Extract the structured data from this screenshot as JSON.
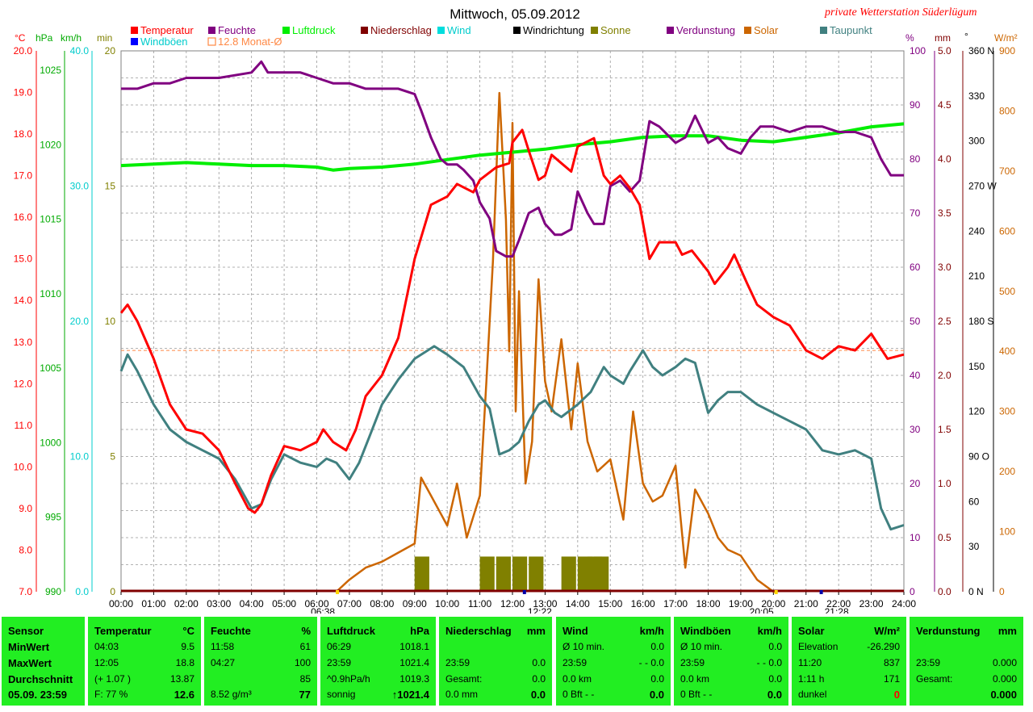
{
  "header": {
    "title": "Mittwoch, 05.09.2012",
    "station": "private Wetterstation Süderlügum"
  },
  "legend": [
    {
      "label": "Temperatur",
      "color": "#ff0000"
    },
    {
      "label": "Feuchte",
      "color": "#800080"
    },
    {
      "label": "Luftdruck",
      "color": "#00ee00"
    },
    {
      "label": "Niederschlag",
      "color": "#800000"
    },
    {
      "label": "Wind",
      "color": "#00dddd"
    },
    {
      "label": "Windrichtung",
      "color": "#000000"
    },
    {
      "label": "Sonne",
      "color": "#808000"
    },
    {
      "label": "Verdunstung",
      "color": "#800080"
    },
    {
      "label": "Solar",
      "color": "#cc6600"
    },
    {
      "label": "Taupunkt",
      "color": "#408080"
    },
    {
      "label": "Windböen",
      "color": "#0000ff"
    },
    {
      "label": "12.8 Monat-Ø",
      "color": "#ff8844"
    }
  ],
  "axes_left": {
    "temp": {
      "unit": "°C",
      "color": "#ff0000",
      "ticks": [
        "20.0",
        "19.0",
        "18.0",
        "17.0",
        "16.0",
        "15.0",
        "14.0",
        "13.0",
        "12.0",
        "11.0",
        "10.0",
        "9.0",
        "8.0",
        "7.0"
      ]
    },
    "press": {
      "unit": "hPa",
      "color": "#00aa00",
      "ticks": [
        "1025",
        "1020",
        "1015",
        "1010",
        "1005",
        "1000",
        "995",
        "990"
      ]
    },
    "wind": {
      "unit": "km/h",
      "color": "#00cccc",
      "ticks": [
        "40.0",
        "30.0",
        "20.0",
        "10.0",
        "0.0"
      ]
    },
    "sun": {
      "unit": "min",
      "color": "#808000",
      "ticks": [
        "20",
        "15",
        "10",
        "5",
        "0"
      ]
    }
  },
  "axes_right": {
    "hum": {
      "unit": "%",
      "color": "#800080",
      "ticks": [
        "100",
        "90",
        "80",
        "70",
        "60",
        "50",
        "40",
        "30",
        "20",
        "10",
        "0"
      ]
    },
    "rain": {
      "unit": "mm",
      "color": "#800000",
      "ticks": [
        "5.0",
        "4.5",
        "4.0",
        "3.5",
        "3.0",
        "2.5",
        "2.0",
        "1.5",
        "1.0",
        "0.5",
        "0.0"
      ]
    },
    "dir": {
      "unit": "°",
      "color": "#000000",
      "ticks": [
        "360 N",
        "330",
        "300",
        "270 W",
        "240",
        "210",
        "180 S",
        "150",
        "120",
        "90  O",
        "60",
        "30",
        "0   N"
      ]
    },
    "solar": {
      "unit": "W/m²",
      "color": "#cc6600",
      "ticks": [
        "900",
        "800",
        "700",
        "600",
        "500",
        "400",
        "300",
        "200",
        "100",
        "0"
      ]
    }
  },
  "x_ticks": [
    "00:00",
    "01:00",
    "02:00",
    "03:00",
    "04:00",
    "05:00",
    "06:00",
    "07:00",
    "08:00",
    "09:00",
    "10:00",
    "11:00",
    "12:00",
    "13:00",
    "14:00",
    "15:00",
    "16:00",
    "17:00",
    "18:00",
    "19:00",
    "20:00",
    "21:00",
    "22:00",
    "23:00",
    "24:00"
  ],
  "markers": {
    "sunrise": "06:38",
    "solar_noon": "12:22",
    "sunset": "20:05",
    "moon": "21:28"
  },
  "chart_data": {
    "type": "line",
    "x_range": [
      "00:00",
      "24:00"
    ],
    "ylim_temp": [
      7.0,
      20.0
    ],
    "ylim_humidity": [
      0,
      100
    ],
    "ylim_pressure": [
      990,
      1026.3
    ],
    "ylim_solar": [
      0,
      900
    ],
    "ylim_sun_min": [
      0,
      20
    ],
    "monthly_mean_temp": 12.8,
    "series": [
      {
        "name": "Temperatur",
        "unit": "°C",
        "color": "#ff0000",
        "x": [
          0,
          0.2,
          0.5,
          1,
          1.5,
          2,
          2.5,
          3,
          3.5,
          3.9,
          4.1,
          4.3,
          4.6,
          5,
          5.5,
          6,
          6.2,
          6.5,
          6.9,
          7.2,
          7.5,
          8,
          8.5,
          9,
          9.5,
          10,
          10.3,
          10.8,
          11,
          11.5,
          11.9,
          12,
          12.3,
          12.5,
          12.8,
          13,
          13.2,
          13.5,
          13.8,
          14,
          14.5,
          14.8,
          15,
          15.3,
          15.6,
          15.9,
          16.2,
          16.5,
          17,
          17.2,
          17.5,
          18,
          18.2,
          18.6,
          18.8,
          19.2,
          19.5,
          20,
          20.5,
          21,
          21.5,
          22,
          22.5,
          23,
          23.5,
          24
        ],
        "y": [
          13.7,
          13.9,
          13.5,
          12.6,
          11.5,
          10.9,
          10.8,
          10.4,
          9.6,
          9.0,
          8.9,
          9.1,
          9.8,
          10.5,
          10.4,
          10.6,
          10.9,
          10.6,
          10.4,
          10.9,
          11.7,
          12.2,
          13.1,
          15.0,
          16.3,
          16.5,
          16.8,
          16.6,
          16.9,
          17.2,
          17.3,
          17.8,
          18.1,
          17.6,
          16.9,
          17.0,
          17.5,
          17.3,
          17.1,
          17.7,
          17.9,
          17.0,
          16.8,
          17.0,
          16.7,
          16.3,
          15.0,
          15.4,
          15.4,
          15.1,
          15.2,
          14.7,
          14.4,
          14.8,
          15.1,
          14.4,
          13.9,
          13.6,
          13.4,
          12.8,
          12.6,
          12.9,
          12.8,
          13.2,
          12.6,
          12.7
        ]
      },
      {
        "name": "Taupunkt",
        "unit": "°C",
        "color": "#408080",
        "x": [
          0,
          0.2,
          0.5,
          1,
          1.5,
          2,
          2.5,
          3,
          3.5,
          4,
          4.3,
          4.6,
          5,
          5.5,
          6,
          6.3,
          6.6,
          7,
          7.3,
          7.6,
          8,
          8.5,
          9,
          9.4,
          9.6,
          10,
          10.5,
          11,
          11.3,
          11.6,
          11.9,
          12.2,
          12.5,
          12.8,
          13,
          13.3,
          13.5,
          14,
          14.4,
          14.8,
          15,
          15.4,
          15.6,
          16,
          16.3,
          16.6,
          17,
          17.3,
          17.6,
          18,
          18.3,
          18.6,
          19,
          19.5,
          20,
          20.5,
          21,
          21.5,
          22,
          22.5,
          23,
          23.3,
          23.6,
          24
        ],
        "y": [
          12.3,
          12.7,
          12.3,
          11.5,
          10.9,
          10.6,
          10.4,
          10.2,
          9.7,
          9.0,
          9.1,
          9.7,
          10.3,
          10.1,
          10.0,
          10.2,
          10.1,
          9.7,
          10.1,
          10.7,
          11.5,
          12.1,
          12.6,
          12.8,
          12.9,
          12.7,
          12.4,
          11.7,
          11.4,
          10.3,
          10.4,
          10.6,
          11.1,
          11.5,
          11.6,
          11.3,
          11.2,
          11.5,
          11.8,
          12.4,
          12.2,
          12.0,
          12.3,
          12.8,
          12.4,
          12.2,
          12.4,
          12.6,
          12.5,
          11.3,
          11.6,
          11.8,
          11.8,
          11.5,
          11.3,
          11.1,
          10.9,
          10.4,
          10.3,
          10.4,
          10.2,
          9.0,
          8.5,
          8.6
        ]
      },
      {
        "name": "Feuchte",
        "unit": "%",
        "color": "#800080",
        "x": [
          0,
          0.5,
          1,
          1.5,
          2,
          3,
          4,
          4.3,
          4.5,
          5,
          5.5,
          6,
          6.5,
          7,
          7.5,
          8,
          8.5,
          9,
          9.2,
          9.5,
          9.8,
          10,
          10.3,
          10.5,
          10.8,
          11,
          11.3,
          11.5,
          11.8,
          12,
          12.2,
          12.5,
          12.8,
          13,
          13.3,
          13.5,
          13.8,
          14,
          14.3,
          14.5,
          14.8,
          15,
          15.3,
          15.6,
          15.9,
          16.2,
          16.5,
          17,
          17.3,
          17.6,
          18,
          18.3,
          18.6,
          19,
          19.3,
          19.6,
          20,
          20.5,
          21,
          21.5,
          22,
          22.5,
          23,
          23.3,
          23.6,
          24
        ],
        "y": [
          93,
          93,
          94,
          94,
          95,
          95,
          96,
          98,
          96,
          96,
          96,
          95,
          94,
          94,
          93,
          93,
          93,
          92,
          89,
          84,
          80,
          79,
          79,
          78,
          76,
          72,
          69,
          63,
          62,
          62,
          65,
          70,
          71,
          68,
          66,
          66,
          67,
          74,
          70,
          68,
          68,
          75,
          76,
          74,
          76,
          87,
          86,
          83,
          84,
          88,
          83,
          84,
          82,
          81,
          84,
          86,
          86,
          85,
          86,
          86,
          85,
          85,
          84,
          80,
          77,
          77
        ]
      },
      {
        "name": "Luftdruck",
        "unit": "hPa",
        "color": "#00ee00",
        "x": [
          0,
          1,
          2,
          3,
          4,
          5,
          6,
          6.5,
          7,
          8,
          9,
          10,
          11,
          12,
          13,
          14,
          15,
          16,
          17,
          18,
          19,
          20,
          21,
          22,
          23,
          24
        ],
        "y": [
          1018.6,
          1018.7,
          1018.8,
          1018.7,
          1018.6,
          1018.6,
          1018.5,
          1018.3,
          1018.4,
          1018.5,
          1018.7,
          1019.0,
          1019.3,
          1019.5,
          1019.7,
          1020.0,
          1020.2,
          1020.5,
          1020.6,
          1020.6,
          1020.3,
          1020.2,
          1020.5,
          1020.8,
          1021.2,
          1021.4
        ]
      },
      {
        "name": "Solar",
        "unit": "W/m²",
        "color": "#cc6600",
        "x": [
          6.6,
          7,
          7.5,
          8,
          8.5,
          9,
          9.2,
          9.5,
          10,
          10.3,
          10.6,
          11,
          11.2,
          11.4,
          11.6,
          11.8,
          11.9,
          12,
          12.1,
          12.2,
          12.4,
          12.6,
          12.8,
          13,
          13.2,
          13.5,
          13.8,
          14,
          14.3,
          14.6,
          15,
          15.4,
          15.7,
          16,
          16.3,
          16.6,
          17,
          17.3,
          17.6,
          18,
          18.3,
          18.6,
          19,
          19.5,
          20,
          20.1
        ],
        "y": [
          0,
          20,
          40,
          50,
          65,
          80,
          190,
          160,
          110,
          180,
          90,
          160,
          350,
          550,
          830,
          620,
          400,
          780,
          300,
          500,
          180,
          250,
          520,
          350,
          300,
          420,
          270,
          380,
          250,
          200,
          220,
          120,
          300,
          180,
          150,
          160,
          210,
          40,
          170,
          130,
          90,
          70,
          60,
          20,
          0,
          0
        ]
      },
      {
        "name": "Sonne",
        "unit": "min",
        "color": "#808000",
        "x": [
          9.0,
          11.0,
          11.5,
          12.0,
          12.5,
          13.5,
          14.0,
          14.3,
          14.5
        ],
        "y": [
          1,
          1,
          1,
          1,
          1,
          1,
          1,
          1,
          1
        ]
      },
      {
        "name": "Niederschlag",
        "unit": "mm",
        "color": "#800000",
        "x": [
          0,
          24
        ],
        "y": [
          0,
          0
        ]
      }
    ]
  },
  "table": {
    "sensor": {
      "header": "Sensor",
      "min": "MinWert",
      "max": "MaxWert",
      "avg": "Durchschnitt",
      "date": "05.09. 23:59"
    },
    "temp": {
      "header": "Temperatur",
      "unit": "°C",
      "r1l": "04:03",
      "r1v": "9.5",
      "r2l": "12:05",
      "r2v": "18.8",
      "r3l": "(+ 1.07 )",
      "r3v": "13.87",
      "r4l": "F: 77 %",
      "r4v": "12.6"
    },
    "hum": {
      "header": "Feuchte",
      "unit": "%",
      "r1l": "11:58",
      "r1v": "61",
      "r2l": "04:27",
      "r2v": "100",
      "r3l": "",
      "r3v": "85",
      "r4l": "8.52 g/m³",
      "r4v": "77"
    },
    "press": {
      "header": "Luftdruck",
      "unit": "hPa",
      "r1l": "06:29",
      "r1v": "1018.1",
      "r2l": "23:59",
      "r2v": "1021.4",
      "r3l": "^0.9hPa/h",
      "r3v": "1019.3",
      "r4l": "sonnig",
      "r4v": "1021.4",
      "r4arrow": "↑"
    },
    "rain": {
      "header": "Niederschlag",
      "unit": "mm",
      "r1l": "",
      "r1v": "",
      "r2l": "23:59",
      "r2v": "0.0",
      "r3l": "Gesamt:",
      "r3v": "0.0",
      "r4l": "0.0 mm",
      "r4v": "0.0"
    },
    "wind": {
      "header": "Wind",
      "unit": "km/h",
      "r1l": "Ø 10 min.",
      "r1v": "0.0",
      "r2l": "23:59",
      "r2v": "- - 0.0",
      "r3l": "0.0 km",
      "r3v": "0.0",
      "r4l": "0 Bft - -",
      "r4v": "0.0"
    },
    "gust": {
      "header": "Windböen",
      "unit": "km/h",
      "r1l": "Ø 10 min.",
      "r1v": "0.0",
      "r2l": "23:59",
      "r2v": "- - 0.0",
      "r3l": "0.0 km",
      "r3v": "0.0",
      "r4l": "0 Bft - -",
      "r4v": "0.0"
    },
    "solar": {
      "header": "Solar",
      "unit": "W/m²",
      "r1l": "Elevation",
      "r1v": "-26.290",
      "r2l": "11:20",
      "r2v": "837",
      "r3l": "1:11 h",
      "r3v": "171",
      "r4l": "dunkel",
      "r4v": "0"
    },
    "evap": {
      "header": "Verdunstung",
      "unit": "mm",
      "r1l": "",
      "r1v": "",
      "r2l": "23:59",
      "r2v": "0.000",
      "r3l": "Gesamt:",
      "r3v": "0.000",
      "r4l": "",
      "r4v": "0.000"
    }
  }
}
